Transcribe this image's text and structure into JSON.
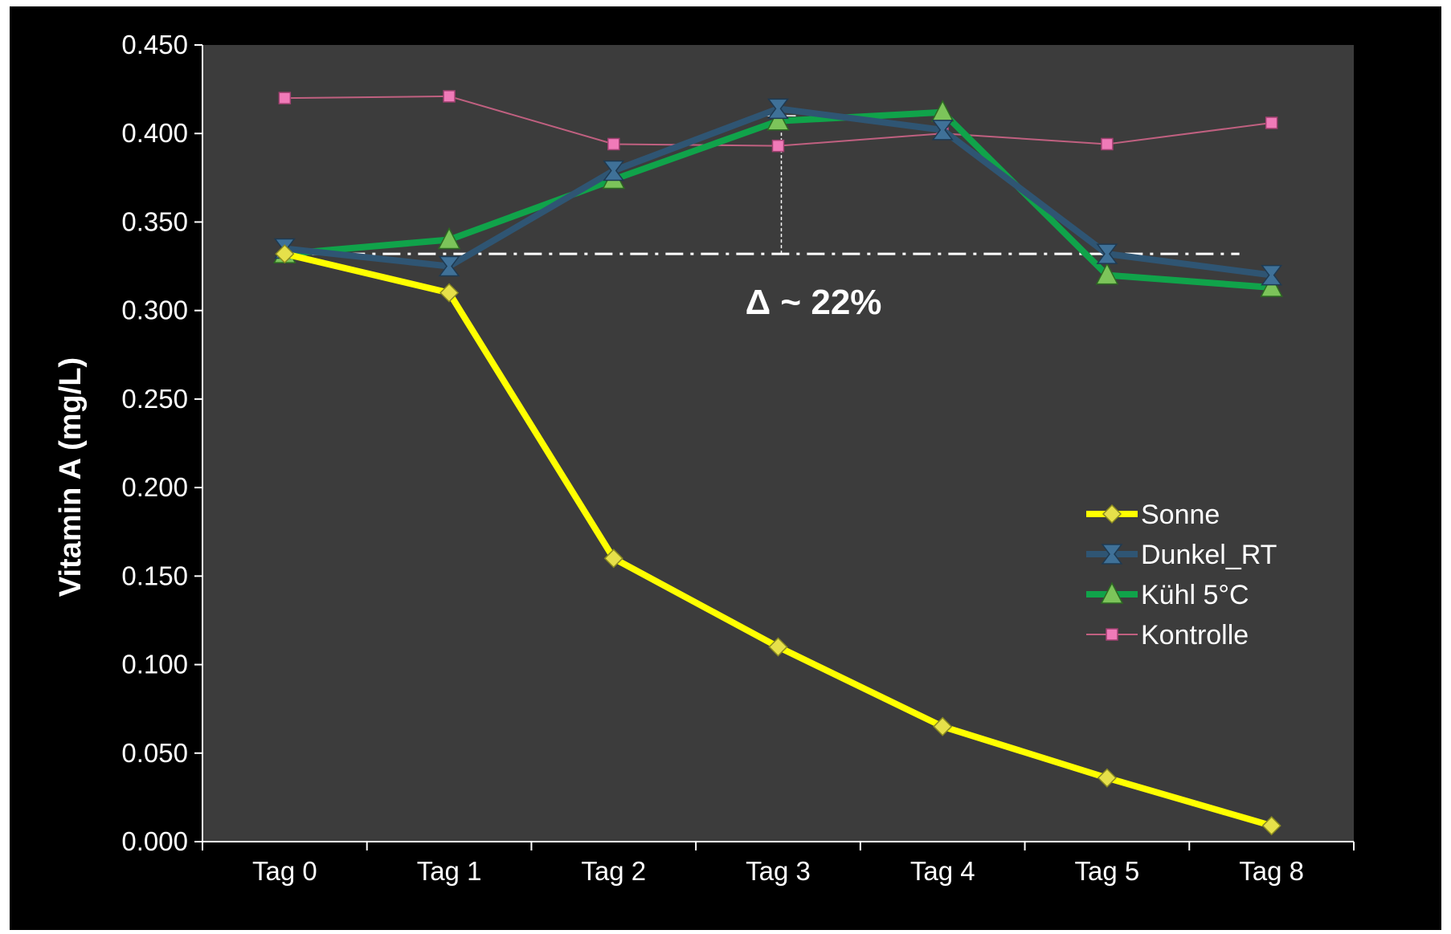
{
  "chart_data": {
    "type": "line",
    "ylabel": "Vitamin A (mg/L)",
    "xlabel": "",
    "categories": [
      "Tag 0",
      "Tag 1",
      "Tag 2",
      "Tag 3",
      "Tag 4",
      "Tag 5",
      "Tag 8"
    ],
    "ylim": [
      0,
      0.45
    ],
    "y_ticks": [
      "0.000",
      "0.050",
      "0.100",
      "0.150",
      "0.200",
      "0.250",
      "0.300",
      "0.350",
      "0.400",
      "0.450"
    ],
    "grid": false,
    "legend_position": "right",
    "plot_background": "#3c3c3c",
    "background": "#000000",
    "series": [
      {
        "name": "Sonne",
        "color": "#ffff00",
        "marker": "diamond",
        "values": [
          0.332,
          0.31,
          0.16,
          0.11,
          0.065,
          0.036,
          0.009
        ]
      },
      {
        "name": "Dunkel_RT",
        "color": "#2f5573",
        "marker": "hourglass",
        "values": [
          0.335,
          0.325,
          0.379,
          0.414,
          0.402,
          0.332,
          0.32
        ]
      },
      {
        "name": "Kühl 5°C",
        "color": "#10a34a",
        "marker": "triangle",
        "values": [
          0.332,
          0.34,
          0.374,
          0.407,
          0.412,
          0.32,
          0.313
        ]
      },
      {
        "name": "Kontrolle",
        "color": "#c06080",
        "marker": "square",
        "values": [
          0.42,
          0.421,
          0.394,
          0.393,
          0.4,
          0.394,
          0.406
        ]
      }
    ],
    "annotations": {
      "reference_value": 0.332,
      "delta_at_category": "Tag 3",
      "delta_top_value": 0.41,
      "delta_label": "Δ ~ 22%"
    }
  }
}
